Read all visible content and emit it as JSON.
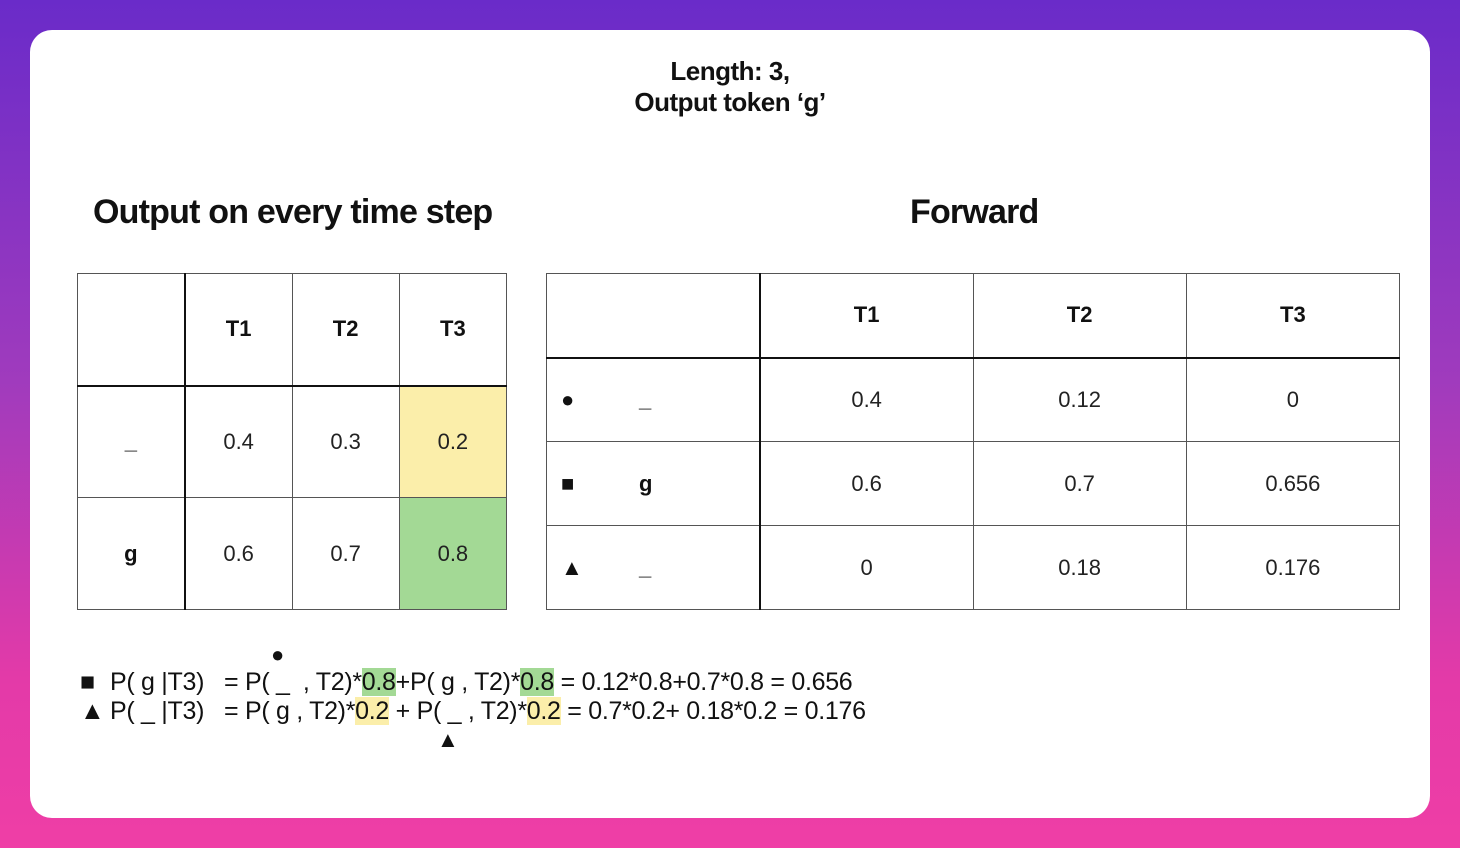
{
  "header": {
    "line1": "Length: 3,",
    "line2": "Output token ‘g’"
  },
  "left": {
    "title": "Output on every time step",
    "columns": [
      "",
      "T1",
      "T2",
      "T3"
    ],
    "rows": [
      {
        "label": "_",
        "values": [
          "0.4",
          "0.3",
          "0.2"
        ]
      },
      {
        "label": "g",
        "values": [
          "0.6",
          "0.7",
          "0.8"
        ]
      }
    ]
  },
  "right": {
    "title": "Forward",
    "columns": [
      "",
      "T1",
      "T2",
      "T3"
    ],
    "rows": [
      {
        "marker": "●",
        "label": "_",
        "values": [
          "0.4",
          "0.12",
          "0"
        ]
      },
      {
        "marker": "■",
        "label": "g",
        "values": [
          "0.6",
          "0.7",
          "0.656"
        ]
      },
      {
        "marker": "▲",
        "label": "_",
        "values": [
          "0",
          "0.18",
          "0.176"
        ]
      }
    ]
  },
  "equations": {
    "above_marker": "●",
    "below_marker": "▲",
    "line1": {
      "marker": "■",
      "prefix": "P( g |T3)   = P( _  , T2)*",
      "hl1": "0.8",
      "mid": "+P( g , T2)*",
      "hl2": "0.8",
      "suffix": " = 0.12*0.8+0.7*0.8 = 0.656"
    },
    "line2": {
      "marker": "▲",
      "prefix": "P( _ |T3)   = P( g , T2)*",
      "hl1": "0.2",
      "mid": " + P( _ , T2)*",
      "hl2": "0.2",
      "suffix": " = 0.7*0.2+ 0.18*0.2 = 0.176"
    }
  },
  "colors": {
    "highlight_yellow": "#fbeeaa",
    "highlight_green": "#a3d995",
    "background_top": "#6a2bc9",
    "background_bottom": "#ef3ea6"
  }
}
